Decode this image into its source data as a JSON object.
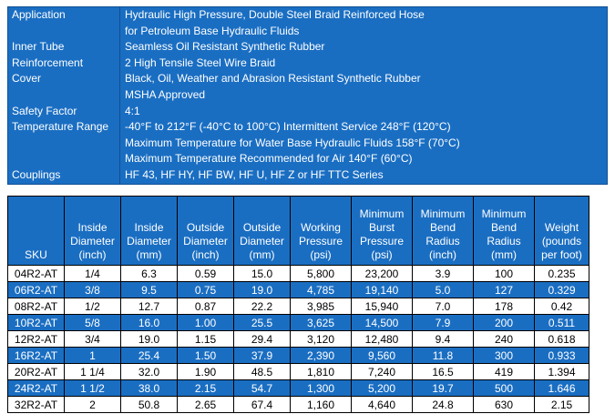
{
  "spec": [
    {
      "label": "Application",
      "values": [
        "Hydraulic High Pressure, Double Steel Braid Reinforced Hose",
        "for Petroleum Base Hydraulic Fluids"
      ]
    },
    {
      "label": "Inner Tube",
      "values": [
        "Seamless Oil Resistant Synthetic Rubber"
      ]
    },
    {
      "label": "Reinforcement",
      "values": [
        "2 High Tensile Steel Wire Braid"
      ]
    },
    {
      "label": "Cover",
      "values": [
        "Black, Oil, Weather and Abrasion Resistant Synthetic Rubber",
        "MSHA Approved"
      ]
    },
    {
      "label": "Safety Factor",
      "values": [
        "4:1"
      ]
    },
    {
      "label": "Temperature Range",
      "values": [
        "-40°F to 212°F  (-40°C to 100°C) Intermittent Service 248°F (120°C)",
        "Maximum Temperature for Water Base Hydraulic Fluids 158°F (70°C)",
        "Maximum Temperature Recommended for Air 140°F (60°C)"
      ]
    },
    {
      "label": "Couplings",
      "values": [
        "HF 43, HF HY, HF BW, HF U, HF Z or HF TTC Series"
      ]
    }
  ],
  "table": {
    "headers": [
      [
        "SKU"
      ],
      [
        "Inside",
        "Diameter",
        "(inch)"
      ],
      [
        "Inside",
        "Diameter",
        "(mm)"
      ],
      [
        "Outside",
        "Diameter",
        "(inch)"
      ],
      [
        "Outside",
        "Diameter",
        "(mm)"
      ],
      [
        "Working",
        "Pressure",
        "(psi)"
      ],
      [
        "Minimum",
        "Burst",
        "Pressure",
        "(psi)"
      ],
      [
        "Minimum",
        "Bend",
        "Radius",
        "(inch)"
      ],
      [
        "Minimum",
        "Bend",
        "Radius",
        "(mm)"
      ],
      [
        "Weight",
        "(pounds",
        "per foot)"
      ]
    ],
    "rows": [
      [
        "04R2-AT",
        "1/4",
        "6.3",
        "0.59",
        "15.0",
        "5,800",
        "23,200",
        "3.9",
        "100",
        "0.235"
      ],
      [
        "06R2-AT",
        "3/8",
        "9.5",
        "0.75",
        "19.0",
        "4,785",
        "19,140",
        "5.0",
        "127",
        "0.329"
      ],
      [
        "08R2-AT",
        "1/2",
        "12.7",
        "0.87",
        "22.2",
        "3,985",
        "15,940",
        "7.0",
        "178",
        "0.42"
      ],
      [
        "10R2-AT",
        "5/8",
        "16.0",
        "1.00",
        "25.5",
        "3,625",
        "14,500",
        "7.9",
        "200",
        "0.511"
      ],
      [
        "12R2-AT",
        "3/4",
        "19.0",
        "1.15",
        "29.4",
        "3,120",
        "12,480",
        "9.4",
        "240",
        "0.618"
      ],
      [
        "16R2-AT",
        "1",
        "25.4",
        "1.50",
        "37.9",
        "2,390",
        "9,560",
        "11.8",
        "300",
        "0.933"
      ],
      [
        "20R2-AT",
        "1 1/4",
        "32.0",
        "1.90",
        "48.5",
        "1,810",
        "7,240",
        "16.5",
        "419",
        "1.394"
      ],
      [
        "24R2-AT",
        "1 1/2",
        "38.0",
        "2.15",
        "54.7",
        "1,300",
        "5,200",
        "19.7",
        "500",
        "1.646"
      ],
      [
        "32R2-AT",
        "2",
        "50.8",
        "2.65",
        "67.4",
        "1,160",
        "4,640",
        "24.8",
        "630",
        "2.15"
      ]
    ]
  },
  "colors": {
    "accent": "#1a6ec2",
    "text_on_accent": "#ffffff"
  }
}
